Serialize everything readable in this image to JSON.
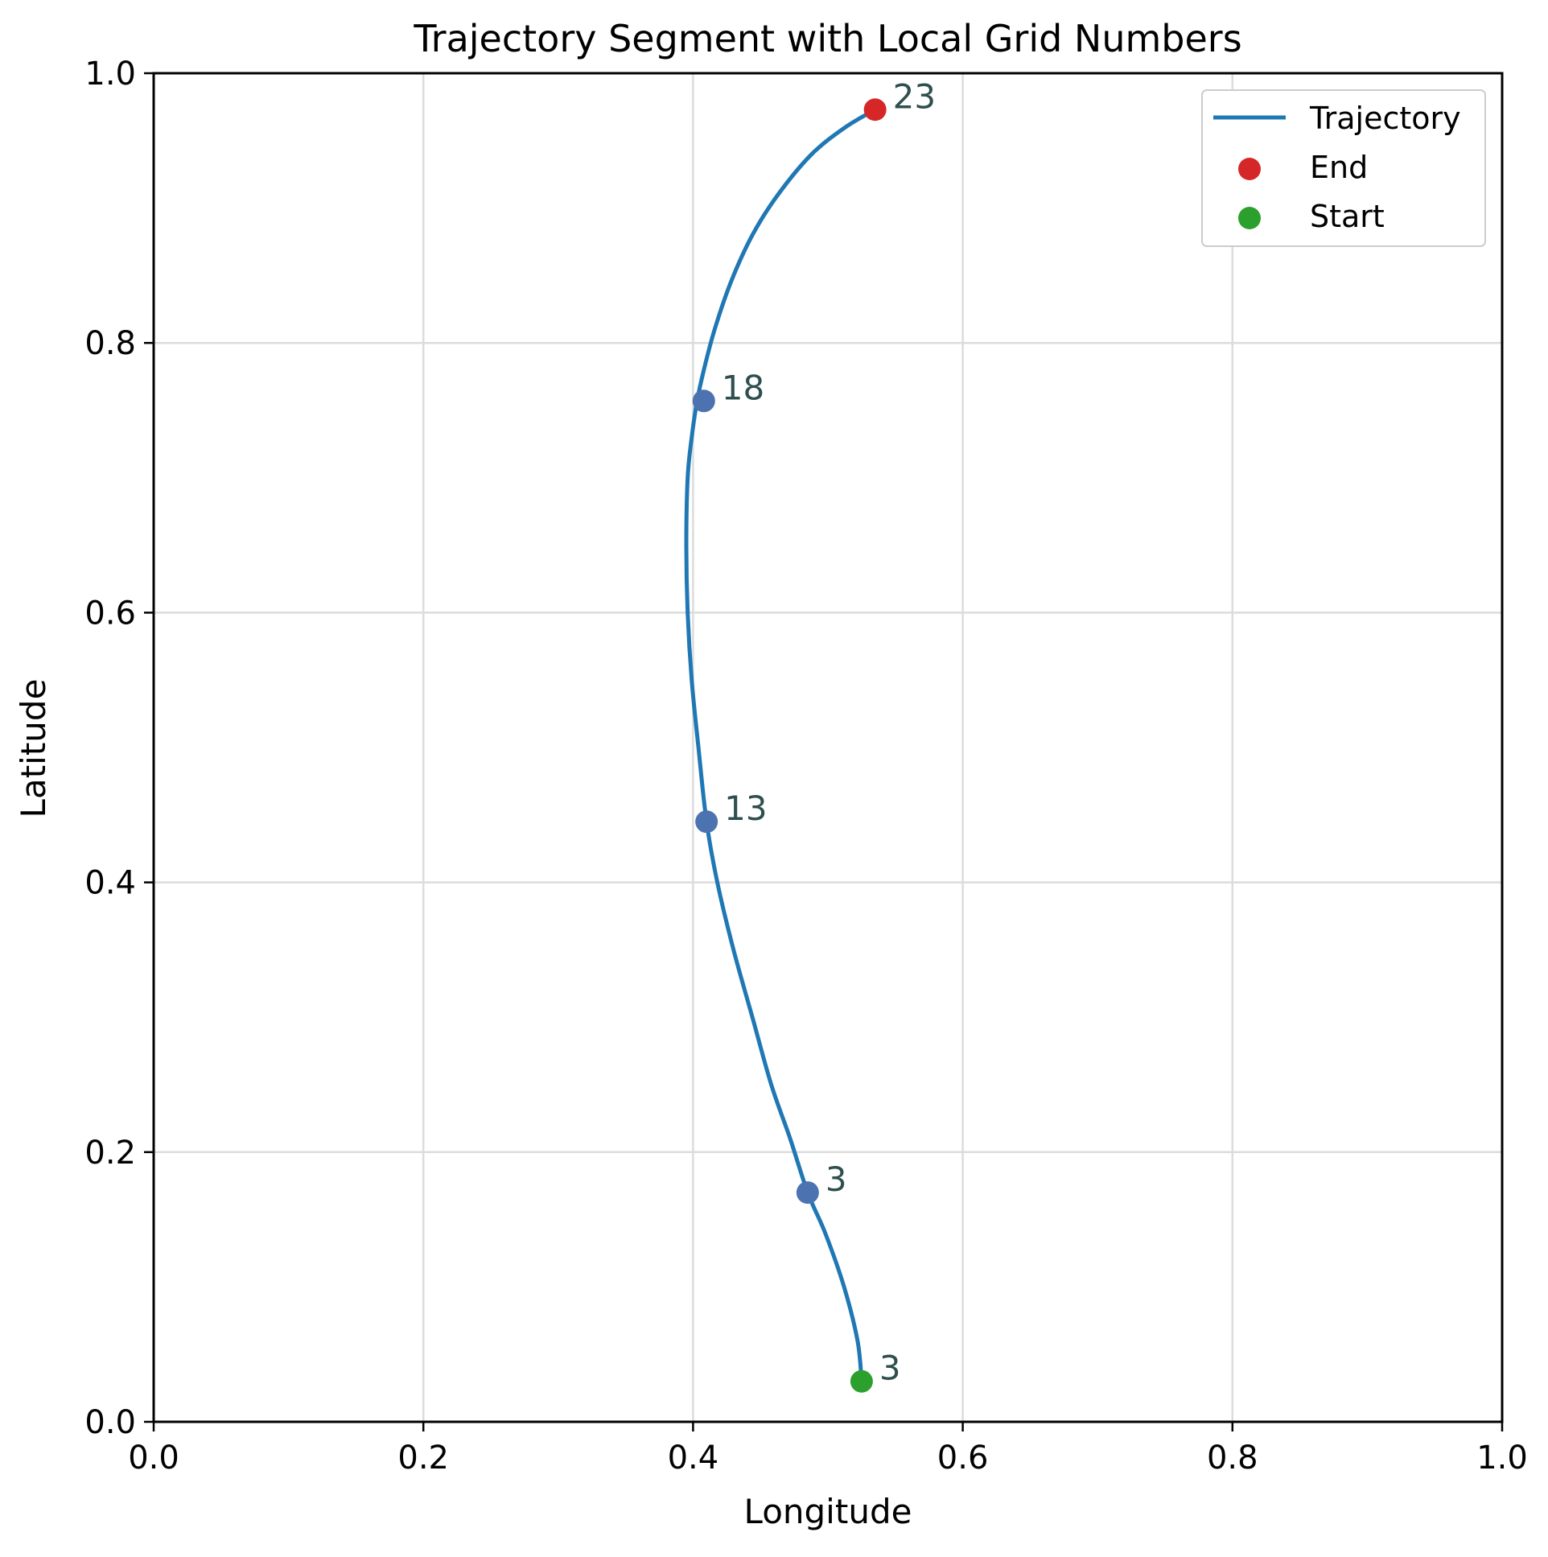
{
  "chart_data": {
    "type": "line",
    "title": "Trajectory Segment with Local Grid Numbers",
    "xlabel": "Longitude",
    "ylabel": "Latitude",
    "xlim": [
      0.0,
      1.0
    ],
    "ylim": [
      0.0,
      1.0
    ],
    "xticks": [
      "0.0",
      "0.2",
      "0.4",
      "0.6",
      "0.8",
      "1.0"
    ],
    "yticks": [
      "0.0",
      "0.2",
      "0.4",
      "0.6",
      "0.8",
      "1.0"
    ],
    "grid": true,
    "legend_position": "top-right",
    "series": [
      {
        "name": "Trajectory",
        "color": "#1f77b4",
        "x": [
          0.525,
          0.522,
          0.512,
          0.498,
          0.485,
          0.472,
          0.458,
          0.444,
          0.43,
          0.418,
          0.41,
          0.404,
          0.399,
          0.396,
          0.395,
          0.396,
          0.399,
          0.403,
          0.408,
          0.416,
          0.428,
          0.444,
          0.463,
          0.488,
          0.513,
          0.535
        ],
        "y": [
          0.03,
          0.06,
          0.1,
          0.14,
          0.17,
          0.21,
          0.25,
          0.3,
          0.35,
          0.4,
          0.445,
          0.5,
          0.55,
          0.6,
          0.65,
          0.7,
          0.73,
          0.757,
          0.78,
          0.81,
          0.845,
          0.88,
          0.91,
          0.94,
          0.96,
          0.973
        ]
      }
    ],
    "end": {
      "name": "End",
      "color": "#d62728",
      "x": 0.535,
      "y": 0.973
    },
    "start": {
      "name": "Start",
      "color": "#2ca02c",
      "x": 0.525,
      "y": 0.03
    },
    "markers_color": "#4c72b0",
    "annotations": [
      {
        "label": "23",
        "x": 0.535,
        "y": 0.973,
        "marker": "end"
      },
      {
        "label": "18",
        "x": 0.408,
        "y": 0.757,
        "marker": "grid"
      },
      {
        "label": "13",
        "x": 0.41,
        "y": 0.445,
        "marker": "grid"
      },
      {
        "label": "3",
        "x": 0.485,
        "y": 0.17,
        "marker": "grid"
      },
      {
        "label": "3",
        "x": 0.525,
        "y": 0.03,
        "marker": "start"
      }
    ],
    "legend": [
      {
        "label": "Trajectory",
        "kind": "line",
        "color": "#1f77b4"
      },
      {
        "label": "End",
        "kind": "dot",
        "color": "#d62728"
      },
      {
        "label": "Start",
        "kind": "dot",
        "color": "#2ca02c"
      }
    ]
  }
}
